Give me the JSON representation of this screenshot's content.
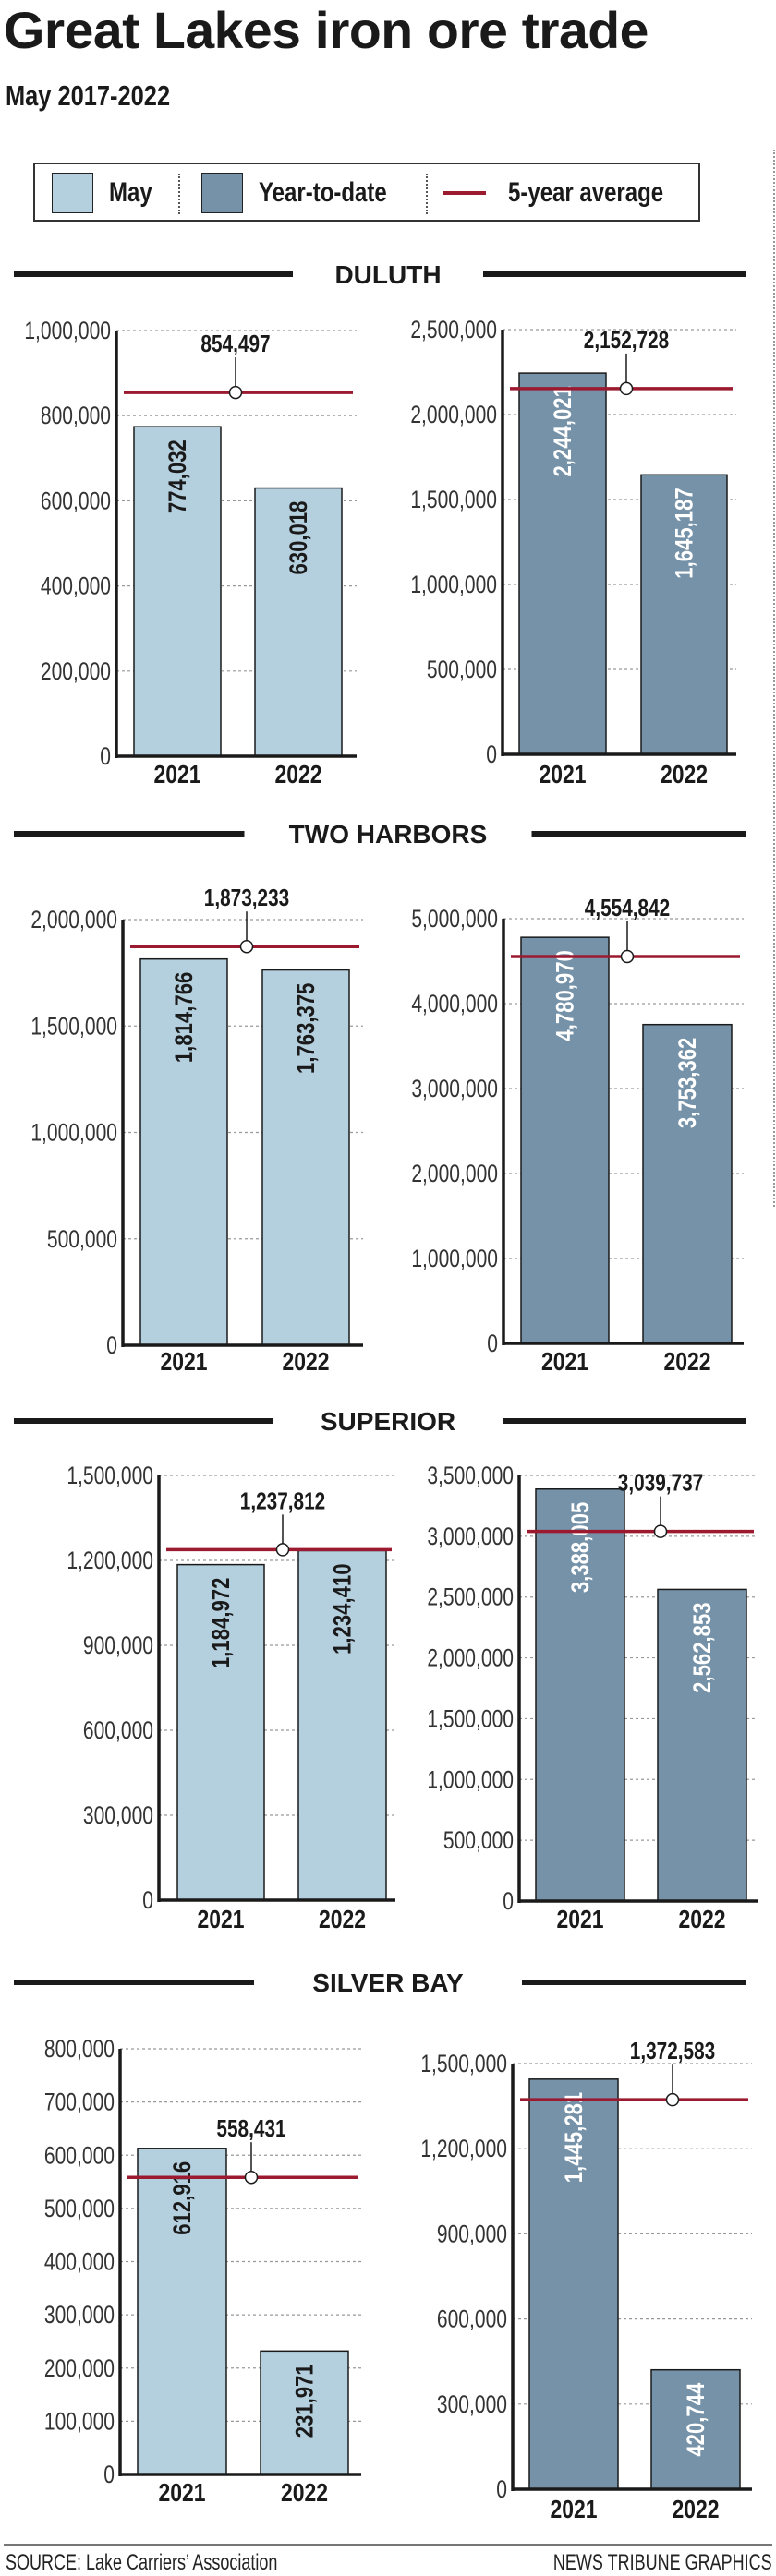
{
  "title": "Great Lakes iron ore trade",
  "subtitle": "May 2017-2022",
  "legend": {
    "may": "May",
    "ytd": "Year-to-date",
    "avg": "5-year average"
  },
  "colors": {
    "may": "#b4cfde",
    "ytd": "#7592a8",
    "avg": "#9c1a30"
  },
  "source": "SOURCE: Lake Carriers’ Association",
  "credit": "NEWS TRIBUNE GRAPHICS",
  "chart_data": [
    {
      "port": "DULUTH",
      "type": "bar",
      "series": "May",
      "categories": [
        "2021",
        "2022"
      ],
      "values": [
        774032,
        630018
      ],
      "average": 854497,
      "ylim": [
        0,
        1000000
      ],
      "yticks": [
        0,
        200000,
        400000,
        600000,
        800000,
        1000000
      ]
    },
    {
      "port": "DULUTH",
      "type": "bar",
      "series": "Year-to-date",
      "categories": [
        "2021",
        "2022"
      ],
      "values": [
        2244021,
        1645187
      ],
      "average": 2152728,
      "ylim": [
        0,
        2500000
      ],
      "yticks": [
        0,
        500000,
        1000000,
        1500000,
        2000000,
        2500000
      ]
    },
    {
      "port": "TWO HARBORS",
      "type": "bar",
      "series": "May",
      "categories": [
        "2021",
        "2022"
      ],
      "values": [
        1814766,
        1763375
      ],
      "average": 1873233,
      "ylim": [
        0,
        2000000
      ],
      "yticks": [
        0,
        500000,
        1000000,
        1500000,
        2000000
      ]
    },
    {
      "port": "TWO HARBORS",
      "type": "bar",
      "series": "Year-to-date",
      "categories": [
        "2021",
        "2022"
      ],
      "values": [
        4780970,
        3753362
      ],
      "average": 4554842,
      "ylim": [
        0,
        5000000
      ],
      "yticks": [
        0,
        1000000,
        2000000,
        3000000,
        4000000,
        5000000
      ]
    },
    {
      "port": "SUPERIOR",
      "type": "bar",
      "series": "May",
      "categories": [
        "2021",
        "2022"
      ],
      "values": [
        1184972,
        1234410
      ],
      "average": 1237812,
      "ylim": [
        0,
        1500000
      ],
      "yticks": [
        0,
        300000,
        600000,
        900000,
        1200000,
        1500000
      ]
    },
    {
      "port": "SUPERIOR",
      "type": "bar",
      "series": "Year-to-date",
      "categories": [
        "2021",
        "2022"
      ],
      "values": [
        3388005,
        2562853
      ],
      "average": 3039737,
      "ylim": [
        0,
        3500000
      ],
      "yticks": [
        0,
        500000,
        1000000,
        1500000,
        2000000,
        2500000,
        3000000,
        3500000
      ]
    },
    {
      "port": "SILVER BAY",
      "type": "bar",
      "series": "May",
      "categories": [
        "2021",
        "2022"
      ],
      "values": [
        612916,
        231971
      ],
      "average": 558431,
      "ylim": [
        0,
        800000
      ],
      "yticks": [
        0,
        100000,
        200000,
        300000,
        400000,
        500000,
        600000,
        700000,
        800000
      ]
    },
    {
      "port": "SILVER BAY",
      "type": "bar",
      "series": "Year-to-date",
      "categories": [
        "2021",
        "2022"
      ],
      "values": [
        1445281,
        420744
      ],
      "average": 1372583,
      "ylim": [
        0,
        1500000
      ],
      "yticks": [
        0,
        300000,
        600000,
        900000,
        1200000,
        1500000
      ]
    }
  ]
}
